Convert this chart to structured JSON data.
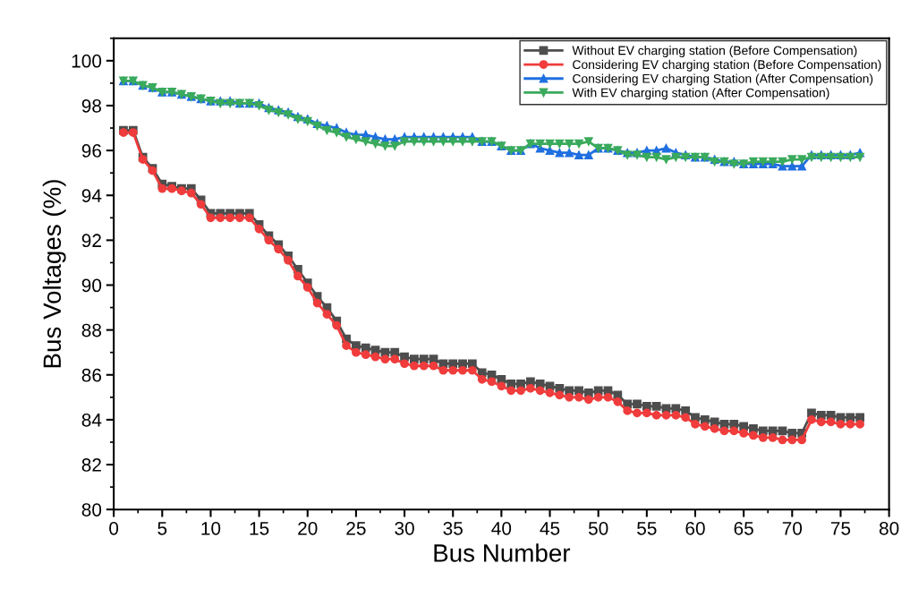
{
  "chart_data": {
    "type": "line",
    "xlabel": "Bus Number",
    "ylabel": "Bus Voltages (%)",
    "x": [
      1,
      2,
      3,
      4,
      5,
      6,
      7,
      8,
      9,
      10,
      11,
      12,
      13,
      14,
      15,
      16,
      17,
      18,
      19,
      20,
      21,
      22,
      23,
      24,
      25,
      26,
      27,
      28,
      29,
      30,
      31,
      32,
      33,
      34,
      35,
      36,
      37,
      38,
      39,
      40,
      41,
      42,
      43,
      44,
      45,
      46,
      47,
      48,
      49,
      50,
      51,
      52,
      53,
      54,
      55,
      56,
      57,
      58,
      59,
      60,
      61,
      62,
      63,
      64,
      65,
      66,
      67,
      68,
      69,
      70,
      71,
      72,
      73,
      74,
      75,
      76,
      77
    ],
    "xlim": [
      0,
      80
    ],
    "xticks": [
      0,
      5,
      10,
      15,
      20,
      25,
      30,
      35,
      40,
      45,
      50,
      55,
      60,
      65,
      70,
      75,
      80
    ],
    "ylim": [
      80,
      101
    ],
    "yticks": [
      80,
      82,
      84,
      86,
      88,
      90,
      92,
      94,
      96,
      98,
      100
    ],
    "grid": false,
    "legend": "top right",
    "line_style": "solid",
    "series": [
      {
        "name": "Without EV charging station (Before Compensation)",
        "color": "#4d4d4d",
        "marker": "square",
        "values": [
          96.9,
          96.9,
          95.7,
          95.2,
          94.5,
          94.4,
          94.3,
          94.3,
          93.8,
          93.2,
          93.2,
          93.2,
          93.2,
          93.2,
          92.7,
          92.2,
          91.8,
          91.3,
          90.7,
          90.1,
          89.5,
          89.0,
          88.4,
          87.6,
          87.3,
          87.2,
          87.1,
          87.0,
          87.0,
          86.8,
          86.7,
          86.7,
          86.7,
          86.5,
          86.5,
          86.5,
          86.5,
          86.1,
          86.0,
          85.8,
          85.6,
          85.6,
          85.7,
          85.6,
          85.5,
          85.4,
          85.3,
          85.3,
          85.2,
          85.3,
          85.3,
          85.1,
          84.7,
          84.7,
          84.6,
          84.6,
          84.5,
          84.5,
          84.4,
          84.1,
          84.0,
          83.9,
          83.8,
          83.8,
          83.7,
          83.6,
          83.5,
          83.5,
          83.5,
          83.4,
          83.4,
          84.3,
          84.2,
          84.2,
          84.1,
          84.1,
          84.1
        ]
      },
      {
        "name": "Considering EV charging station (Before Compensation)",
        "color": "#f03c3c",
        "marker": "circle",
        "values": [
          96.8,
          96.8,
          95.6,
          95.1,
          94.3,
          94.3,
          94.2,
          94.1,
          93.6,
          93.0,
          93.0,
          93.0,
          93.0,
          93.0,
          92.5,
          92.0,
          91.6,
          91.1,
          90.4,
          89.9,
          89.2,
          88.7,
          88.2,
          87.3,
          87.0,
          86.9,
          86.8,
          86.7,
          86.7,
          86.5,
          86.4,
          86.4,
          86.4,
          86.2,
          86.2,
          86.2,
          86.2,
          85.8,
          85.7,
          85.5,
          85.3,
          85.3,
          85.4,
          85.3,
          85.2,
          85.1,
          85.0,
          85.0,
          84.9,
          85.0,
          85.0,
          84.8,
          84.4,
          84.3,
          84.3,
          84.2,
          84.2,
          84.2,
          84.1,
          83.8,
          83.7,
          83.6,
          83.5,
          83.5,
          83.4,
          83.3,
          83.2,
          83.2,
          83.1,
          83.1,
          83.1,
          84.0,
          83.9,
          83.9,
          83.8,
          83.8,
          83.8
        ]
      },
      {
        "name": "Considering EV charging Station (After Compensation)",
        "color": "#1f6fe0",
        "marker": "triangle",
        "values": [
          99.1,
          99.1,
          98.9,
          98.8,
          98.6,
          98.6,
          98.5,
          98.4,
          98.3,
          98.2,
          98.2,
          98.2,
          98.1,
          98.1,
          98.1,
          97.9,
          97.8,
          97.7,
          97.5,
          97.4,
          97.2,
          97.1,
          97.0,
          96.8,
          96.7,
          96.7,
          96.6,
          96.5,
          96.5,
          96.6,
          96.6,
          96.6,
          96.6,
          96.6,
          96.6,
          96.6,
          96.6,
          96.4,
          96.4,
          96.2,
          96.0,
          96.0,
          96.3,
          96.1,
          96.0,
          95.9,
          95.9,
          95.8,
          95.8,
          96.1,
          96.1,
          96.0,
          95.9,
          95.9,
          96.0,
          96.0,
          96.1,
          95.9,
          95.8,
          95.7,
          95.7,
          95.6,
          95.5,
          95.5,
          95.4,
          95.4,
          95.4,
          95.4,
          95.3,
          95.3,
          95.3,
          95.8,
          95.8,
          95.8,
          95.8,
          95.8,
          95.9
        ]
      },
      {
        "name": "With EV charging station (After Compensation)",
        "color": "#3aaa5c",
        "marker": "triangle_down",
        "values": [
          99.1,
          99.1,
          98.9,
          98.8,
          98.6,
          98.6,
          98.5,
          98.4,
          98.3,
          98.2,
          98.1,
          98.1,
          98.1,
          98.1,
          98.0,
          97.8,
          97.7,
          97.6,
          97.4,
          97.3,
          97.1,
          96.9,
          96.8,
          96.6,
          96.5,
          96.4,
          96.3,
          96.2,
          96.2,
          96.4,
          96.4,
          96.4,
          96.4,
          96.4,
          96.4,
          96.4,
          96.4,
          96.4,
          96.4,
          96.2,
          96.0,
          96.0,
          96.3,
          96.3,
          96.3,
          96.3,
          96.3,
          96.3,
          96.4,
          96.1,
          96.1,
          96.0,
          95.8,
          95.8,
          95.7,
          95.7,
          95.6,
          95.7,
          95.7,
          95.7,
          95.7,
          95.5,
          95.5,
          95.4,
          95.4,
          95.5,
          95.5,
          95.5,
          95.5,
          95.6,
          95.6,
          95.7,
          95.7,
          95.7,
          95.7,
          95.7,
          95.7
        ]
      }
    ]
  }
}
